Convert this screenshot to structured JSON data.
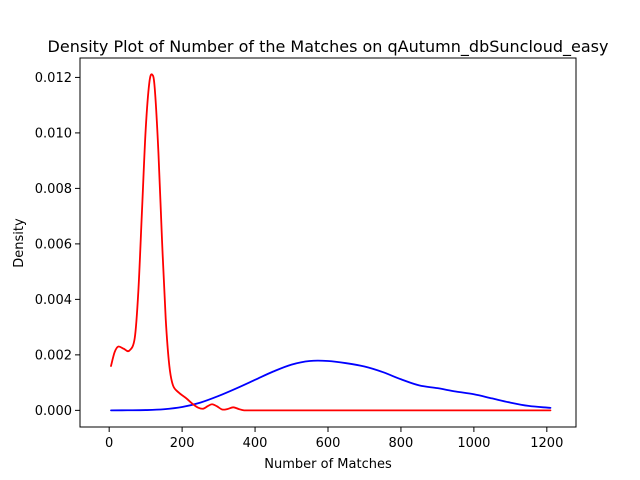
{
  "chart_data": {
    "type": "line",
    "title": "Density Plot of Number of the Matches on qAutumn_dbSuncloud_easy",
    "xlabel": "Number of Matches",
    "ylabel": "Density",
    "xlim": [
      -80,
      1280
    ],
    "ylim": [
      -0.0006,
      0.0127
    ],
    "xticks": [
      0,
      200,
      400,
      600,
      800,
      1000,
      1200
    ],
    "xtick_labels": [
      "0",
      "200",
      "400",
      "600",
      "800",
      "1000",
      "1200"
    ],
    "yticks": [
      0.0,
      0.002,
      0.004,
      0.006,
      0.008,
      0.01,
      0.012
    ],
    "ytick_labels": [
      "0.000",
      "0.002",
      "0.004",
      "0.006",
      "0.008",
      "0.010",
      "0.012"
    ],
    "grid": false,
    "series": [
      {
        "color": "#0000ff",
        "points": [
          [
            5,
            0.0
          ],
          [
            50,
            3e-06
          ],
          [
            100,
            1e-05
          ],
          [
            150,
            4e-05
          ],
          [
            200,
            0.00012
          ],
          [
            250,
            0.00028
          ],
          [
            300,
            0.00052
          ],
          [
            350,
            0.0008
          ],
          [
            400,
            0.0011
          ],
          [
            450,
            0.0014
          ],
          [
            500,
            0.00165
          ],
          [
            550,
            0.00178
          ],
          [
            600,
            0.00178
          ],
          [
            650,
            0.0017
          ],
          [
            700,
            0.00158
          ],
          [
            750,
            0.00138
          ],
          [
            800,
            0.00112
          ],
          [
            850,
            0.0009
          ],
          [
            900,
            0.0008
          ],
          [
            950,
            0.00068
          ],
          [
            1000,
            0.00058
          ],
          [
            1050,
            0.00043
          ],
          [
            1100,
            0.00028
          ],
          [
            1150,
            0.00016
          ],
          [
            1200,
            0.0001
          ],
          [
            1210,
            9e-05
          ]
        ]
      },
      {
        "color": "#ff0000",
        "points": [
          [
            5,
            0.0016
          ],
          [
            15,
            0.0021
          ],
          [
            25,
            0.0023
          ],
          [
            40,
            0.00222
          ],
          [
            55,
            0.00215
          ],
          [
            70,
            0.0026
          ],
          [
            80,
            0.0043
          ],
          [
            90,
            0.0072
          ],
          [
            100,
            0.0101
          ],
          [
            110,
            0.0118
          ],
          [
            118,
            0.0121
          ],
          [
            125,
            0.0116
          ],
          [
            135,
            0.0093
          ],
          [
            145,
            0.0061
          ],
          [
            155,
            0.0033
          ],
          [
            165,
            0.0016
          ],
          [
            175,
            0.0009
          ],
          [
            190,
            0.00065
          ],
          [
            210,
            0.00045
          ],
          [
            230,
            0.00022
          ],
          [
            245,
            9e-05
          ],
          [
            258,
            6e-05
          ],
          [
            270,
            0.00015
          ],
          [
            282,
            0.00022
          ],
          [
            295,
            0.00015
          ],
          [
            310,
            3e-05
          ],
          [
            325,
            5e-05
          ],
          [
            340,
            0.00011
          ],
          [
            355,
            5e-05
          ],
          [
            370,
            0.0
          ],
          [
            400,
            0.0
          ],
          [
            500,
            0.0
          ],
          [
            700,
            0.0
          ],
          [
            900,
            0.0
          ],
          [
            1100,
            0.0
          ],
          [
            1210,
            0.0
          ]
        ]
      }
    ]
  }
}
